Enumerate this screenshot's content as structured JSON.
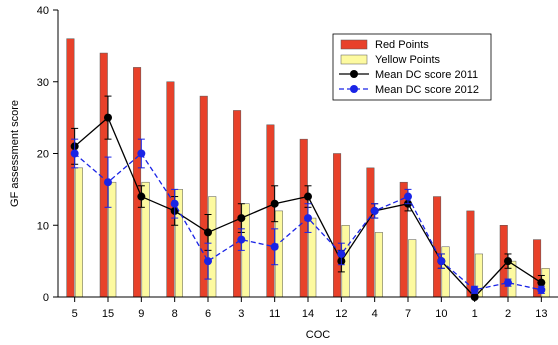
{
  "chart_data": {
    "type": "bar",
    "title": "",
    "xlabel": "COC",
    "ylabel": "GF assessment score",
    "ylim": [
      0,
      40
    ],
    "yticks": [
      0,
      10,
      20,
      30,
      40
    ],
    "grid": false,
    "legend_position": "top-right",
    "categories": [
      "5",
      "15",
      "9",
      "8",
      "6",
      "3",
      "11",
      "14",
      "12",
      "4",
      "7",
      "10",
      "1",
      "2",
      "13"
    ],
    "bar_series": [
      {
        "name": "Red Points",
        "color": "#e8412a",
        "values": [
          36,
          34,
          32,
          30,
          28,
          26,
          24,
          22,
          20,
          18,
          16,
          14,
          12,
          10,
          8
        ]
      },
      {
        "name": "Yellow Points",
        "color": "#fdfaa0",
        "values": [
          18,
          16,
          16,
          15,
          14,
          13,
          12,
          11,
          10,
          9,
          8,
          7,
          6,
          5,
          4
        ]
      }
    ],
    "line_series": [
      {
        "name": "Mean DC score 2011",
        "color": "#000000",
        "dash": "solid",
        "values": [
          21,
          25,
          14,
          12,
          9,
          11,
          13,
          14,
          5,
          12,
          13,
          5,
          0,
          5,
          2
        ],
        "errors": [
          2.5,
          3,
          1.5,
          2,
          2.5,
          2,
          2.5,
          1.5,
          1.5,
          1,
          1,
          1,
          0.5,
          1,
          1
        ]
      },
      {
        "name": "Mean DC score 2012",
        "color": "#1a24e6",
        "dash": "dashed",
        "values": [
          20,
          16,
          20,
          13,
          5,
          8,
          7,
          11,
          6,
          12,
          14,
          5,
          1,
          2,
          1
        ],
        "errors": [
          2,
          3.5,
          2,
          2,
          2.5,
          1.5,
          2.5,
          2,
          1.5,
          1,
          1,
          1,
          0.5,
          0.5,
          0.5
        ]
      }
    ]
  },
  "legend": {
    "items": [
      "Red Points",
      "Yellow Points",
      "Mean DC score 2011",
      "Mean DC score 2012"
    ]
  }
}
